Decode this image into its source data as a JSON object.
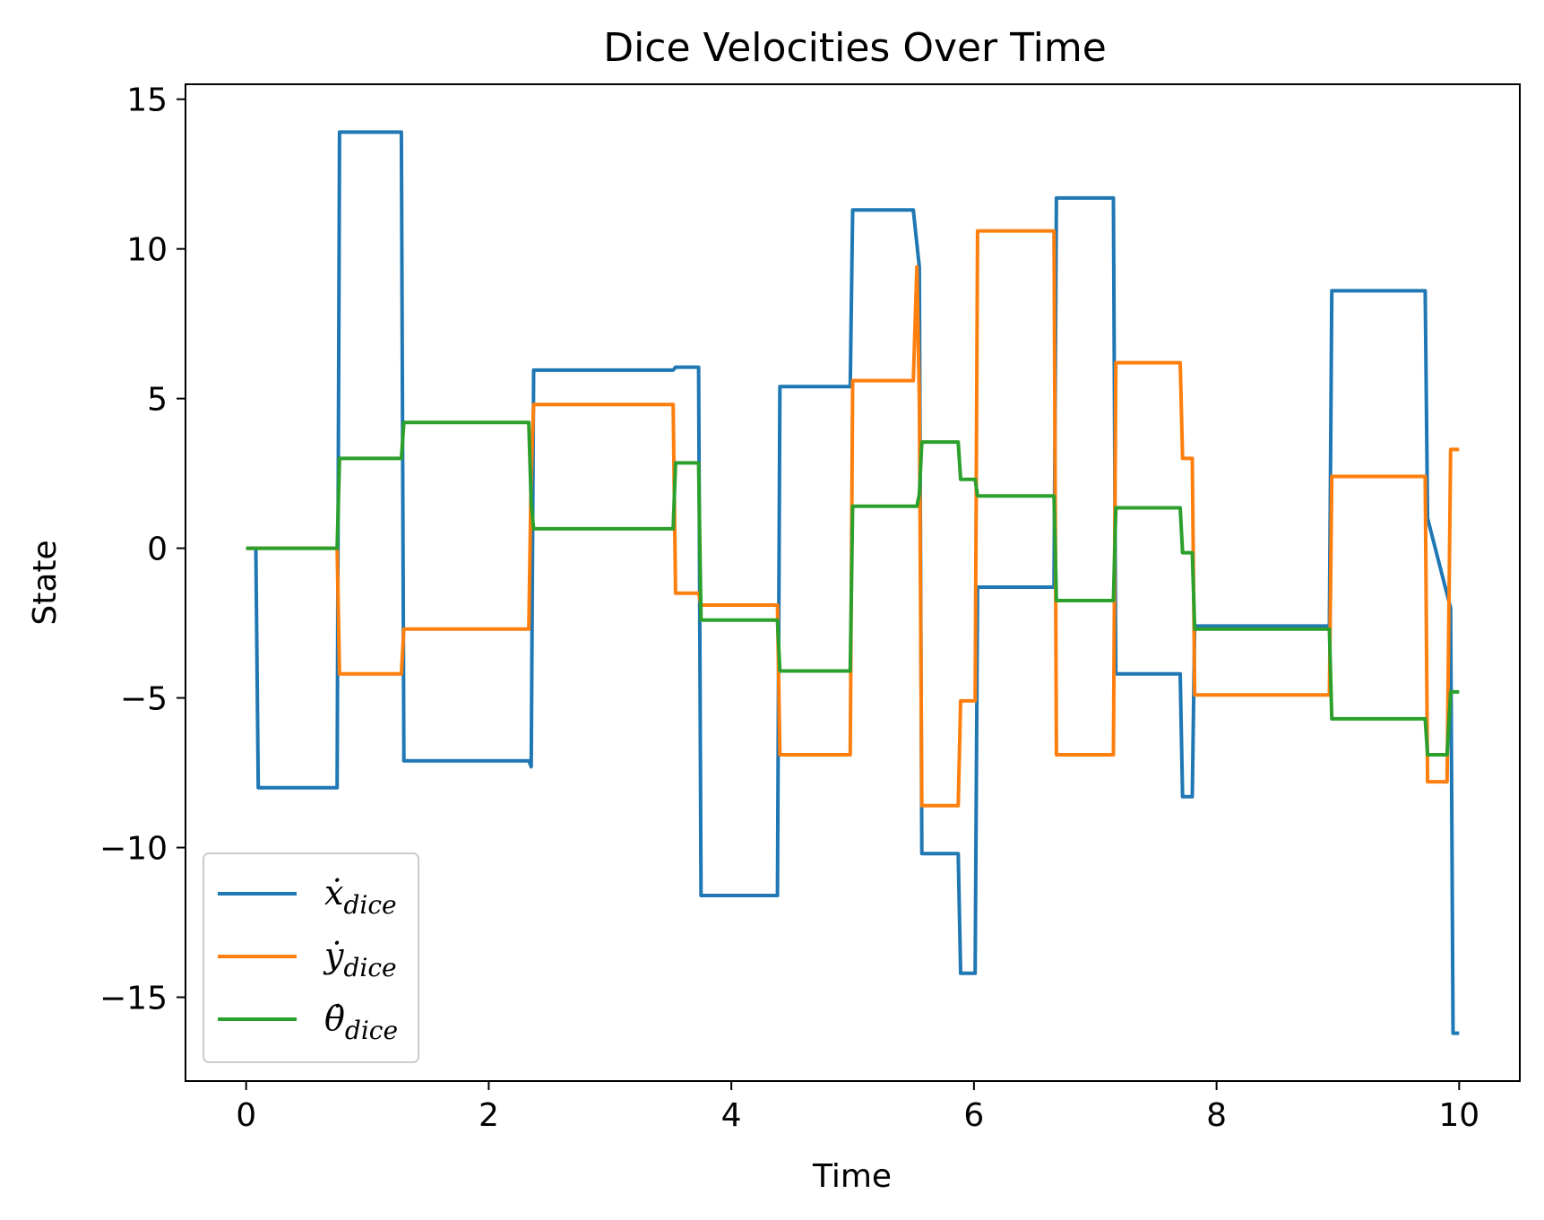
{
  "chart_data": {
    "type": "line",
    "title": "Dice Velocities Over Time",
    "xlabel": "Time",
    "ylabel": "State",
    "xlim": [
      -0.5,
      10.5
    ],
    "ylim": [
      -17.8,
      15.5
    ],
    "xticks": [
      0,
      2,
      4,
      6,
      8,
      10
    ],
    "xtick_labels": [
      "0",
      "2",
      "4",
      "6",
      "8",
      "10"
    ],
    "yticks": [
      15,
      10,
      5,
      0,
      -5,
      -10,
      -15
    ],
    "ytick_labels": [
      "15",
      "10",
      "5",
      "0",
      "−5",
      "−10",
      "−15"
    ],
    "grid": false,
    "legend_position": "lower-left",
    "series": [
      {
        "name": "ẋ",
        "sub": "dice",
        "color": "#1f77b4",
        "x": [
          0,
          0.08,
          0.1,
          0.75,
          0.77,
          1.28,
          1.3,
          2.33,
          2.35,
          2.37,
          3.52,
          3.54,
          3.73,
          3.75,
          4.38,
          4.4,
          4.98,
          5.0,
          5.5,
          5.55,
          5.57,
          5.87,
          5.89,
          6.01,
          6.03,
          6.66,
          6.68,
          7.15,
          7.17,
          7.7,
          7.72,
          7.8,
          7.82,
          8.93,
          8.95,
          9.72,
          9.74,
          9.93,
          9.95,
          10.0
        ],
        "y": [
          0,
          0,
          -8.0,
          -8.0,
          13.9,
          13.9,
          -7.1,
          -7.1,
          -7.3,
          5.95,
          5.95,
          6.05,
          6.05,
          -11.6,
          -11.6,
          5.4,
          5.4,
          11.3,
          11.3,
          9.4,
          -10.2,
          -10.2,
          -14.2,
          -14.2,
          -1.3,
          -1.3,
          11.7,
          11.7,
          -4.2,
          -4.2,
          -8.3,
          -8.3,
          -2.6,
          -2.6,
          8.6,
          8.6,
          1.0,
          -2.0,
          -16.2,
          -16.2
        ]
      },
      {
        "name": "ẏ",
        "sub": "dice",
        "color": "#ff7f0e",
        "x": [
          0,
          0.75,
          0.77,
          1.28,
          1.3,
          2.33,
          2.35,
          2.37,
          3.52,
          3.54,
          3.73,
          3.75,
          4.38,
          4.4,
          4.98,
          5.0,
          5.5,
          5.53,
          5.55,
          5.57,
          5.87,
          5.89,
          6.01,
          6.03,
          6.66,
          6.68,
          7.15,
          7.17,
          7.7,
          7.72,
          7.8,
          7.82,
          8.93,
          8.95,
          9.72,
          9.74,
          9.9,
          9.93,
          10.0
        ],
        "y": [
          0,
          0,
          -4.2,
          -4.2,
          -2.7,
          -2.7,
          2.5,
          4.8,
          4.8,
          -1.5,
          -1.5,
          -1.9,
          -1.9,
          -6.9,
          -6.9,
          5.6,
          5.6,
          9.4,
          5.0,
          -8.6,
          -8.6,
          -5.1,
          -5.1,
          10.6,
          10.6,
          -6.9,
          -6.9,
          6.2,
          6.2,
          3.0,
          3.0,
          -4.9,
          -4.9,
          2.4,
          2.4,
          -7.8,
          -7.8,
          3.3,
          3.3
        ]
      },
      {
        "name": "θ̇",
        "sub": "dice",
        "color": "#2ca02c",
        "x": [
          0,
          0.75,
          0.77,
          1.28,
          1.3,
          2.33,
          2.35,
          2.37,
          3.52,
          3.54,
          3.73,
          3.75,
          4.38,
          4.4,
          4.98,
          5.0,
          5.5,
          5.53,
          5.55,
          5.57,
          5.87,
          5.89,
          6.01,
          6.03,
          6.66,
          6.68,
          7.15,
          7.17,
          7.7,
          7.72,
          7.8,
          7.82,
          8.93,
          8.95,
          9.72,
          9.74,
          9.9,
          9.93,
          10.0
        ],
        "y": [
          0,
          0,
          3.0,
          3.0,
          4.2,
          4.2,
          1.5,
          0.65,
          0.65,
          2.85,
          2.85,
          -2.4,
          -2.4,
          -4.1,
          -4.1,
          1.4,
          1.4,
          1.4,
          1.8,
          3.55,
          3.55,
          2.3,
          2.3,
          1.75,
          1.75,
          -1.75,
          -1.75,
          1.35,
          1.35,
          -0.15,
          -0.15,
          -2.7,
          -2.7,
          -5.7,
          -5.7,
          -6.9,
          -6.9,
          -4.8,
          -4.8
        ]
      }
    ]
  }
}
